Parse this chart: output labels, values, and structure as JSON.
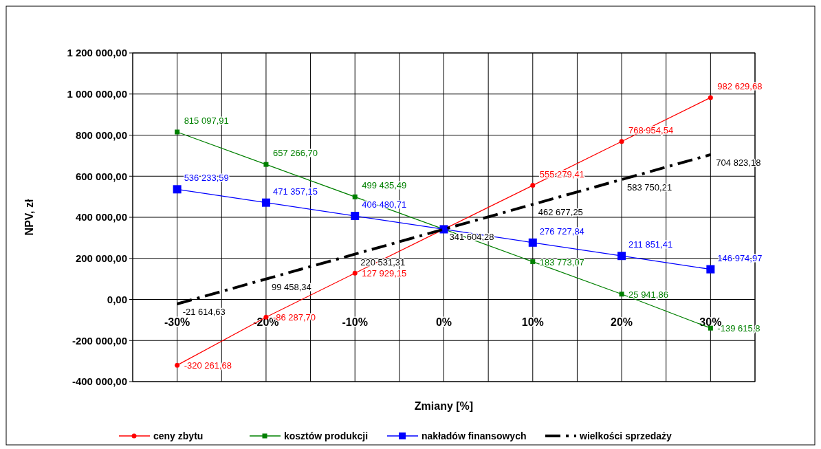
{
  "chart_data": {
    "type": "line",
    "xlabel": "Zmiany [%]",
    "ylabel": "NPV, zł",
    "categories": [
      "-30%",
      "-20%",
      "-10%",
      "0%",
      "10%",
      "20%",
      "30%"
    ],
    "series": [
      {
        "name": "ceny zbytu",
        "color": "#ff0000",
        "marker": "circle",
        "values": [
          -320261.68,
          -86287.7,
          127929.15,
          341604.28,
          555279.41,
          768954.54,
          982629.68
        ],
        "value_labels": [
          "-320 261,68",
          "-86 287,70",
          "127 929,15",
          null,
          "555 279,41",
          "768 954,54",
          "982 629,68"
        ]
      },
      {
        "name": "kosztów produkcji",
        "color": "#008000",
        "marker": "square",
        "values": [
          815097.91,
          657266.7,
          499435.49,
          341604.28,
          183773.07,
          25941.86,
          -139615.8
        ],
        "value_labels": [
          "815 097,91",
          "657 266,70",
          "499 435,49",
          null,
          "183 773,07",
          "25 941,86",
          "-139 615,8"
        ]
      },
      {
        "name": "nakładów finansowych",
        "color": "#0000ff",
        "marker": "square",
        "values": [
          536233.59,
          471357.15,
          406480.71,
          341604.28,
          276727.84,
          211851.41,
          146974.97
        ],
        "value_labels": [
          "536 233,59",
          "471 357,15",
          "406 480,71",
          null,
          "276 727,84",
          "211 851,41",
          "146 974,97"
        ]
      },
      {
        "name": "wielkości sprzedaży",
        "color": "#000000",
        "marker": "none",
        "line_style": "dashed",
        "values": [
          -21614.63,
          99458.34,
          220531.31,
          341604.28,
          462677.25,
          583750.21,
          704823.18
        ],
        "value_labels": [
          "-21 614,63",
          "99 458,34",
          "220 531,31",
          "341 604,28",
          "462 677,25",
          "583 750,21",
          "704 823,18"
        ]
      }
    ],
    "ylim": [
      -400000,
      1200000
    ],
    "yticks": [
      {
        "value": -400000,
        "label": "-400 000,00"
      },
      {
        "value": -200000,
        "label": "-200 000,00"
      },
      {
        "value": 0,
        "label": "0,00"
      },
      {
        "value": 200000,
        "label": "200 000,00"
      },
      {
        "value": 400000,
        "label": "400 000,00"
      },
      {
        "value": 600000,
        "label": "600 000,00"
      },
      {
        "value": 800000,
        "label": "800 000,00"
      },
      {
        "value": 1000000,
        "label": "1 000 000,00"
      },
      {
        "value": 1200000,
        "label": "1 200 000,00"
      }
    ],
    "grid": true,
    "legend": "bottom"
  }
}
